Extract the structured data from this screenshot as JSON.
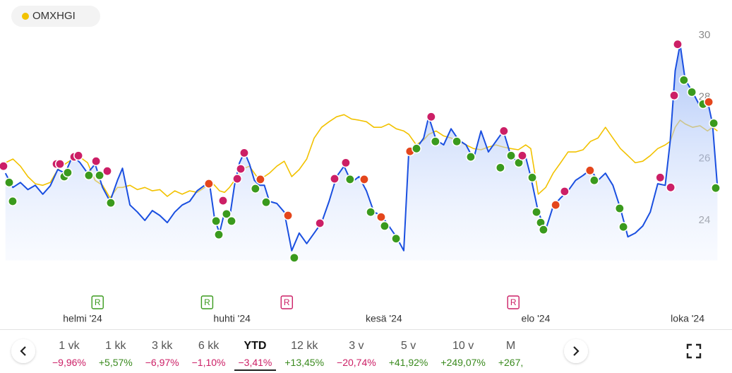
{
  "chart_data": {
    "type": "line",
    "legend": "top-left",
    "y_axis_side": "right",
    "grid": false,
    "xlim": [
      0,
      290
    ],
    "xticks": [
      {
        "value": 32,
        "label": "helmi '24"
      },
      {
        "value": 92,
        "label": "huhti '24"
      },
      {
        "value": 153,
        "label": "kesä '24"
      },
      {
        "value": 214,
        "label": "elo '24"
      },
      {
        "value": 275,
        "label": "loka '24"
      }
    ],
    "ylim": [
      22.7,
      30.5
    ],
    "yticks": [
      24,
      26,
      28,
      30
    ],
    "x": [
      1,
      4,
      7,
      10,
      13,
      16,
      19,
      22,
      25,
      28,
      31,
      34,
      37,
      40,
      43,
      46,
      48,
      51,
      54,
      57,
      60,
      63,
      66,
      69,
      72,
      75,
      78,
      81,
      83,
      85,
      87,
      89,
      91,
      93,
      95,
      97,
      99,
      101,
      103,
      105,
      107,
      110,
      113,
      116,
      119,
      122,
      125,
      128,
      131,
      134,
      137,
      140,
      143,
      146,
      149,
      152,
      155,
      158,
      161,
      163,
      166,
      169,
      171,
      174,
      177,
      180,
      183,
      186,
      189,
      192,
      195,
      198,
      201,
      204,
      207,
      210,
      212,
      215,
      218,
      221,
      224,
      227,
      230,
      233,
      236,
      239,
      242,
      245,
      248,
      251,
      254,
      257,
      260,
      263,
      266,
      268,
      270,
      272,
      274,
      277,
      280,
      283,
      285,
      287
    ],
    "series": [
      {
        "color": "#1a4fe0",
        "area": true,
        "values": [
          25.53,
          25.07,
          25.23,
          25.0,
          25.14,
          24.85,
          25.12,
          25.65,
          25.53,
          26.1,
          25.87,
          25.53,
          25.83,
          25.07,
          24.62,
          25.3,
          25.69,
          24.5,
          24.27,
          24.0,
          24.32,
          24.16,
          23.93,
          24.27,
          24.5,
          24.62,
          24.96,
          25.14,
          25.19,
          24.05,
          23.59,
          24.27,
          24.05,
          25.14,
          25.87,
          26.22,
          25.83,
          25.3,
          25.14,
          25.14,
          24.62,
          24.55,
          24.27,
          23.02,
          23.59,
          23.25,
          23.59,
          23.93,
          24.62,
          25.42,
          25.76,
          25.23,
          25.42,
          24.96,
          24.27,
          24.16,
          23.82,
          23.47,
          23.02,
          26.22,
          26.33,
          26.67,
          27.36,
          26.61,
          26.45,
          26.97,
          26.61,
          26.45,
          25.99,
          26.9,
          26.22,
          26.56,
          26.9,
          26.1,
          25.87,
          26.05,
          25.42,
          24.27,
          23.7,
          24.46,
          24.73,
          24.96,
          25.3,
          25.46,
          25.65,
          25.3,
          25.53,
          25.14,
          24.39,
          23.47,
          23.59,
          23.82,
          24.27,
          25.19,
          25.14,
          26.56,
          28.85,
          29.71,
          28.57,
          28.16,
          27.7,
          27.89,
          27.13,
          25.07
        ]
      },
      {
        "name": "OMXHGI",
        "color": "#f2c200",
        "values": [
          25.87,
          25.99,
          25.76,
          25.42,
          25.19,
          25.14,
          25.23,
          25.65,
          25.83,
          25.99,
          26.05,
          25.87,
          25.3,
          25.14,
          24.73,
          25.07,
          25.07,
          25.14,
          25.0,
          25.07,
          24.96,
          25.0,
          24.78,
          24.96,
          24.85,
          24.96,
          24.91,
          25.07,
          25.3,
          25.14,
          24.96,
          24.91,
          25.07,
          25.3,
          25.53,
          25.69,
          25.76,
          25.53,
          25.3,
          25.42,
          25.53,
          25.76,
          25.92,
          25.42,
          25.65,
          25.99,
          26.67,
          27.02,
          27.2,
          27.36,
          27.43,
          27.29,
          27.25,
          27.2,
          27.02,
          27.02,
          27.13,
          26.97,
          26.9,
          26.79,
          26.45,
          26.61,
          26.79,
          26.9,
          26.74,
          26.67,
          26.56,
          26.45,
          26.33,
          26.29,
          26.38,
          26.45,
          26.38,
          26.33,
          26.29,
          26.45,
          26.33,
          24.85,
          25.07,
          25.53,
          25.87,
          26.22,
          26.22,
          26.29,
          26.56,
          26.67,
          27.02,
          26.67,
          26.33,
          26.1,
          25.87,
          25.92,
          26.1,
          26.33,
          26.45,
          26.56,
          27.02,
          27.25,
          27.13,
          27.02,
          27.07,
          26.9,
          27.02,
          26.9
        ]
      }
    ],
    "events": {
      "x": [
        0.2,
        2.5,
        3.9,
        21.5,
        22.9,
        24.6,
        26.0,
        28.6,
        30.3,
        34.5,
        37.4,
        38.8,
        41.9,
        43.3,
        82.7,
        85.6,
        86.7,
        88.4,
        89.8,
        91.8,
        94.1,
        95.5,
        96.9,
        101.4,
        103.4,
        105.7,
        114.5,
        117.0,
        127.3,
        133.2,
        137.7,
        139.4,
        145.1,
        147.7,
        151.9,
        153.3,
        157.9,
        163.5,
        166.1,
        172.0,
        173.7,
        182.3,
        187.9,
        199.8,
        201.2,
        204.1,
        207.2,
        208.6,
        212.6,
        214.3,
        216.0,
        217.1,
        222.0,
        225.6,
        235.8,
        237.5,
        247.7,
        249.2,
        264.0,
        268.2,
        269.6,
        271.0,
        273.5,
        276.7,
        281.2,
        283.5,
        285.5,
        286.3
      ],
      "values": [
        25.76,
        25.23,
        24.62,
        25.83,
        25.83,
        25.42,
        25.55,
        26.06,
        26.1,
        25.46,
        25.92,
        25.46,
        25.6,
        24.57,
        25.19,
        23.98,
        23.54,
        24.64,
        24.21,
        23.98,
        25.35,
        25.67,
        26.19,
        25.03,
        25.33,
        24.59,
        24.16,
        22.79,
        23.91,
        25.35,
        25.87,
        25.33,
        25.33,
        24.27,
        24.11,
        23.82,
        23.41,
        26.24,
        26.33,
        27.36,
        26.56,
        26.56,
        26.06,
        25.71,
        26.9,
        26.1,
        25.87,
        26.1,
        25.39,
        24.27,
        23.93,
        23.7,
        24.5,
        24.94,
        25.62,
        25.3,
        24.39,
        23.79,
        25.39,
        25.07,
        28.05,
        29.71,
        28.55,
        28.16,
        27.77,
        27.84,
        27.15,
        25.05
      ],
      "colors": [
        "#cc1f66",
        "#3a9a1d",
        "#3a9a1d",
        "#cc1f66",
        "#cc1f66",
        "#3a9a1d",
        "#3a9a1d",
        "#cc1f66",
        "#cc1f66",
        "#3a9a1d",
        "#cc1f66",
        "#3a9a1d",
        "#cc1f66",
        "#3a9a1d",
        "#e4461c",
        "#3a9a1d",
        "#3a9a1d",
        "#cc1f66",
        "#3a9a1d",
        "#3a9a1d",
        "#cc1f66",
        "#cc1f66",
        "#cc1f66",
        "#3a9a1d",
        "#e4461c",
        "#3a9a1d",
        "#e4461c",
        "#3a9a1d",
        "#cc1f66",
        "#cc1f66",
        "#cc1f66",
        "#3a9a1d",
        "#e4461c",
        "#3a9a1d",
        "#e4461c",
        "#3a9a1d",
        "#3a9a1d",
        "#e4461c",
        "#3a9a1d",
        "#cc1f66",
        "#3a9a1d",
        "#3a9a1d",
        "#3a9a1d",
        "#3a9a1d",
        "#cc1f66",
        "#3a9a1d",
        "#3a9a1d",
        "#cc1f66",
        "#3a9a1d",
        "#3a9a1d",
        "#3a9a1d",
        "#3a9a1d",
        "#e4461c",
        "#cc1f66",
        "#e4461c",
        "#3a9a1d",
        "#3a9a1d",
        "#3a9a1d",
        "#cc1f66",
        "#cc1f66",
        "#cc1f66",
        "#cc1f66",
        "#3a9a1d",
        "#3a9a1d",
        "#3a9a1d",
        "#e4461c",
        "#3a9a1d",
        "#3a9a1d"
      ]
    },
    "report_markers": {
      "label": "R",
      "x": [
        38,
        82,
        114,
        205
      ],
      "colors": [
        "#3a9a1d",
        "#3a9a1d",
        "#cc1f66",
        "#cc1f66"
      ]
    }
  },
  "periods": {
    "selected": 4,
    "items": [
      {
        "label": "1 vk",
        "change": "−9,96%",
        "color": "#cc1f66"
      },
      {
        "label": "1 kk",
        "change": "+5,57%",
        "color": "#3a8a1e"
      },
      {
        "label": "3 kk",
        "change": "−6,97%",
        "color": "#cc1f66"
      },
      {
        "label": "6 kk",
        "change": "−1,10%",
        "color": "#cc1f66"
      },
      {
        "label": "YTD",
        "change": "−3,41%",
        "color": "#cc1f66"
      },
      {
        "label": "12 kk",
        "change": "+13,45%",
        "color": "#3a8a1e"
      },
      {
        "label": "3 v",
        "change": "−20,74%",
        "color": "#cc1f66"
      },
      {
        "label": "5 v",
        "change": "+41,92%",
        "color": "#3a8a1e"
      },
      {
        "label": "10 v",
        "change": "+249,07%",
        "color": "#3a8a1e"
      },
      {
        "label": "M",
        "change": "+267,",
        "color": "#3a8a1e"
      }
    ]
  }
}
